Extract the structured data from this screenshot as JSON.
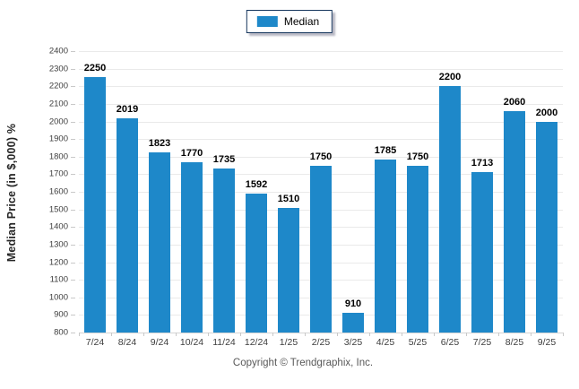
{
  "legend": {
    "items": [
      {
        "label": "Median",
        "color": "#1e88c9"
      }
    ]
  },
  "chart_data": {
    "type": "bar",
    "categories": [
      "7/24",
      "8/24",
      "9/24",
      "10/24",
      "11/24",
      "12/24",
      "1/25",
      "2/25",
      "3/25",
      "4/25",
      "5/25",
      "6/25",
      "7/25",
      "8/25",
      "9/25"
    ],
    "series": [
      {
        "name": "Median",
        "values": [
          2250,
          2019,
          1823,
          1770,
          1735,
          1592,
          1510,
          1750,
          910,
          1785,
          1750,
          2200,
          1713,
          2060,
          2000
        ]
      }
    ],
    "ylabel": "Median Price (in $,000) %",
    "xlabel": "",
    "ylim": [
      800,
      2400
    ],
    "ytick_step": 100,
    "grid": "horizontal",
    "legend_position": "top-center",
    "bar_color": "#1e88c9",
    "value_labels": true
  },
  "footer": {
    "text": "Copyright © Trendgraphix, Inc."
  }
}
